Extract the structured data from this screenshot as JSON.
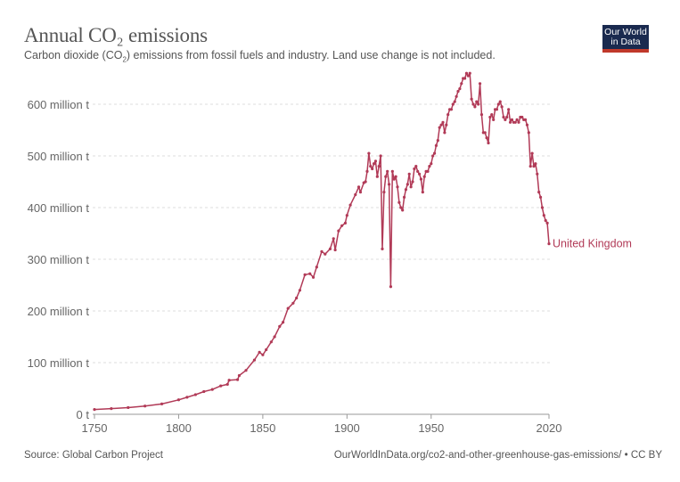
{
  "header": {
    "title": "Annual CO₂ emissions",
    "subtitle_before": "Carbon dioxide (CO",
    "subtitle_sub": "2",
    "subtitle_after": ") emissions from fossil fuels and industry. Land use change is not included.",
    "logo_line1": "Our World",
    "logo_line2": "in Data"
  },
  "footer": {
    "source": "Source: Global Carbon Project",
    "url_license": "OurWorldInData.org/co2-and-other-greenhouse-gas-emissions/ • CC BY"
  },
  "colors": {
    "series": "#b13a57",
    "logo_bg": "#1a2a4f",
    "logo_bar": "#c0392b",
    "grid": "#dddddd"
  },
  "chart_data": {
    "type": "line",
    "title": "Annual CO₂ emissions",
    "subtitle": "Carbon dioxide (CO₂) emissions from fossil fuels and industry. Land use change is not included.",
    "xlabel": "",
    "ylabel": "",
    "xlim": [
      1750,
      2020
    ],
    "ylim": [
      0,
      660
    ],
    "grid": true,
    "x_ticks": [
      1750,
      1800,
      1850,
      1900,
      1950,
      2020
    ],
    "y_ticks": [
      {
        "value": 0,
        "label": "0 t"
      },
      {
        "value": 100,
        "label": "100 million t"
      },
      {
        "value": 200,
        "label": "200 million t"
      },
      {
        "value": 300,
        "label": "300 million t"
      },
      {
        "value": 400,
        "label": "400 million t"
      },
      {
        "value": 500,
        "label": "500 million t"
      },
      {
        "value": 600,
        "label": "600 million t"
      }
    ],
    "legend": "inline-right",
    "series": [
      {
        "name": "United Kingdom",
        "x": [
          1750,
          1760,
          1770,
          1780,
          1790,
          1800,
          1805,
          1810,
          1815,
          1820,
          1825,
          1829,
          1830,
          1835,
          1836,
          1840,
          1845,
          1848,
          1850,
          1852,
          1855,
          1857,
          1860,
          1862,
          1865,
          1868,
          1870,
          1872,
          1875,
          1878,
          1880,
          1882,
          1885,
          1887,
          1890,
          1892,
          1893,
          1895,
          1897,
          1899,
          1900,
          1902,
          1905,
          1907,
          1908,
          1910,
          1911,
          1912,
          1913,
          1914,
          1915,
          1916,
          1917,
          1918,
          1919,
          1920,
          1921,
          1922,
          1923,
          1924,
          1925,
          1926,
          1927,
          1928,
          1929,
          1930,
          1931,
          1932,
          1933,
          1934,
          1935,
          1936,
          1937,
          1938,
          1939,
          1940,
          1941,
          1942,
          1943,
          1944,
          1945,
          1946,
          1947,
          1948,
          1949,
          1950,
          1951,
          1952,
          1953,
          1954,
          1955,
          1956,
          1957,
          1958,
          1959,
          1960,
          1961,
          1962,
          1963,
          1964,
          1965,
          1966,
          1967,
          1968,
          1969,
          1970,
          1971,
          1972,
          1973,
          1974,
          1975,
          1976,
          1977,
          1978,
          1979,
          1980,
          1981,
          1982,
          1983,
          1984,
          1985,
          1986,
          1987,
          1988,
          1989,
          1990,
          1991,
          1992,
          1993,
          1994,
          1995,
          1996,
          1997,
          1998,
          1999,
          2000,
          2001,
          2002,
          2003,
          2004,
          2005,
          2006,
          2007,
          2008,
          2009,
          2010,
          2011,
          2012,
          2013,
          2014,
          2015,
          2016,
          2017,
          2018,
          2019,
          2020
        ],
        "values": [
          9.3,
          11,
          13,
          16,
          20,
          28,
          33,
          38,
          44,
          48,
          55,
          58,
          66,
          67,
          75,
          85,
          105,
          120,
          115,
          125,
          140,
          150,
          170,
          178,
          205,
          215,
          225,
          240,
          270,
          272,
          265,
          285,
          315,
          310,
          320,
          340,
          318,
          355,
          365,
          370,
          385,
          405,
          425,
          440,
          430,
          448,
          450,
          470,
          505,
          480,
          475,
          485,
          490,
          460,
          480,
          500,
          320,
          430,
          460,
          470,
          445,
          247,
          470,
          455,
          460,
          440,
          410,
          400,
          395,
          420,
          435,
          445,
          465,
          440,
          450,
          475,
          480,
          470,
          465,
          455,
          430,
          460,
          470,
          470,
          480,
          485,
          500,
          505,
          520,
          530,
          555,
          560,
          565,
          545,
          560,
          580,
          590,
          590,
          600,
          605,
          615,
          625,
          630,
          640,
          650,
          650,
          660,
          655,
          660,
          610,
          600,
          595,
          605,
          600,
          640,
          580,
          545,
          545,
          535,
          525,
          575,
          580,
          570,
          590,
          590,
          600,
          605,
          595,
          575,
          570,
          575,
          590,
          565,
          570,
          565,
          565,
          570,
          565,
          575,
          575,
          570,
          570,
          560,
          545,
          480,
          505,
          480,
          485,
          465,
          430,
          420,
          400,
          385,
          375,
          370,
          330
        ]
      }
    ]
  }
}
